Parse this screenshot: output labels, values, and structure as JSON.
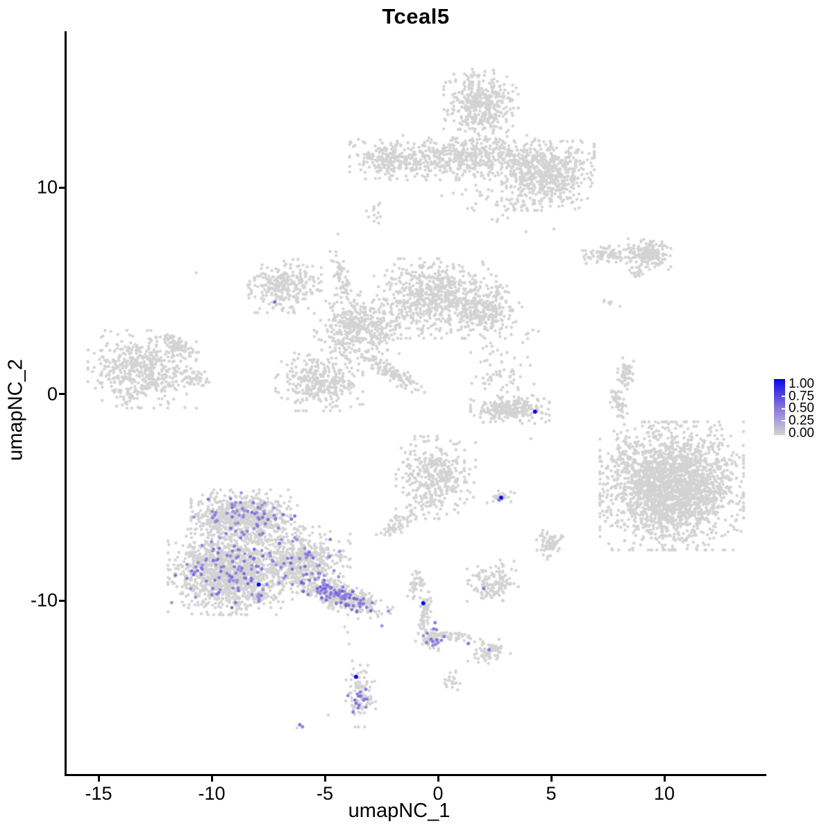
{
  "title": "Tceal5",
  "chart_data": {
    "type": "scatter",
    "title": "Tceal5",
    "xlabel": "umapNC_1",
    "ylabel": "umapNC_2",
    "xlim": [
      -16.45,
      14.47
    ],
    "ylim": [
      -18.39,
      17.58
    ],
    "x_ticks": [
      -15,
      -10,
      -5,
      0,
      5,
      10
    ],
    "x_tick_labels": [
      "-15",
      "-10",
      "-5",
      "0",
      "5",
      "10"
    ],
    "y_ticks": [
      10,
      0,
      -10
    ],
    "y_tick_labels": [
      "10",
      "0",
      "-10"
    ],
    "grid": false,
    "legend_position": "right",
    "legend": {
      "tick_labels": [
        "1.00",
        "0.75",
        "0.50",
        "0.25",
        "0.00"
      ],
      "tick_values": [
        1.0,
        0.75,
        0.5,
        0.25,
        0.0
      ]
    },
    "colors": {
      "low": "#D3D3D3",
      "mid": "#8673DE",
      "high": "#0808E8",
      "axis": "#000000",
      "background": "#FFFFFF"
    },
    "point_radius_px": 2.2,
    "gray_clusters_comment": "each cluster = [cx, cy, sigma_x, sigma_y, rot_deg, n_points] in data coords; zero-expression cells",
    "gray_clusters": [
      [
        1.89,
        14.05,
        0.7,
        0.72,
        0,
        420
      ],
      [
        1.49,
        11.46,
        2.3,
        0.46,
        0,
        650
      ],
      [
        -2.25,
        11.29,
        0.55,
        0.42,
        0,
        130
      ],
      [
        4.8,
        10.59,
        0.85,
        0.72,
        0,
        520
      ],
      [
        3.17,
        9.4,
        1.45,
        0.65,
        0,
        55
      ],
      [
        -2.81,
        8.67,
        0.16,
        0.25,
        0,
        13
      ],
      [
        -6.86,
        5.24,
        0.72,
        0.55,
        0,
        270
      ],
      [
        -4.28,
        5.7,
        0.16,
        0.55,
        12,
        55
      ],
      [
        -3.48,
        3.23,
        0.85,
        0.75,
        0,
        420
      ],
      [
        -0.14,
        4.64,
        1.15,
        0.82,
        0,
        650
      ],
      [
        2.1,
        4.07,
        0.68,
        0.58,
        0,
        260
      ],
      [
        -5.26,
        0.61,
        0.82,
        0.6,
        0,
        330
      ],
      [
        -2.13,
        1.11,
        0.78,
        0.18,
        -35,
        130
      ],
      [
        2.56,
        2.29,
        0.35,
        0.3,
        0,
        7
      ],
      [
        -13.08,
        1.21,
        1.02,
        0.8,
        0,
        520
      ],
      [
        -11.46,
        2.39,
        0.45,
        0.18,
        -35,
        65
      ],
      [
        -10.78,
        0.77,
        0.3,
        0.2,
        0,
        40
      ],
      [
        2.78,
        0.87,
        0.62,
        0.58,
        0,
        55
      ],
      [
        4.0,
        2.89,
        0.35,
        0.25,
        0,
        6
      ],
      [
        3.17,
        -0.71,
        0.74,
        0.3,
        0,
        260
      ],
      [
        7.56,
        6.76,
        0.55,
        0.18,
        0,
        90
      ],
      [
        9.34,
        6.79,
        0.4,
        0.32,
        0,
        160
      ],
      [
        8.73,
        5.88,
        0.28,
        0.11,
        -35,
        20
      ],
      [
        7.68,
        4.54,
        0.25,
        0.22,
        0,
        6
      ],
      [
        8.24,
        0.84,
        0.16,
        0.38,
        -10,
        60
      ],
      [
        7.93,
        -0.4,
        0.14,
        0.32,
        10,
        50
      ],
      [
        10.32,
        -4.44,
        1.35,
        1.32,
        0,
        2300
      ],
      [
        8.6,
        -2.6,
        0.45,
        0.5,
        0,
        14
      ],
      [
        2.78,
        -4.97,
        0.33,
        0.15,
        0,
        26
      ],
      [
        4.92,
        -7.29,
        0.25,
        0.3,
        0,
        65
      ],
      [
        -0.11,
        -4.03,
        0.75,
        0.85,
        0,
        380
      ],
      [
        -1.67,
        -6.22,
        0.5,
        0.16,
        42,
        65
      ],
      [
        3.0,
        -8.3,
        0.35,
        0.2,
        0,
        4
      ],
      [
        -0.97,
        -9.28,
        0.2,
        0.3,
        0,
        40
      ],
      [
        -0.6,
        -10.76,
        0.13,
        0.55,
        -8,
        65
      ],
      [
        -0.29,
        -11.83,
        0.22,
        0.26,
        0,
        55
      ],
      [
        0.57,
        -11.73,
        0.45,
        0.12,
        -5,
        45
      ],
      [
        2.25,
        -12.5,
        0.4,
        0.28,
        0,
        75
      ],
      [
        2.41,
        -9.18,
        0.48,
        0.36,
        0,
        130
      ],
      [
        -8.57,
        -5.92,
        1.0,
        0.55,
        0,
        700
      ],
      [
        -9.19,
        -8.61,
        1.17,
        0.88,
        0,
        1250
      ],
      [
        -6.12,
        -8.0,
        0.95,
        0.68,
        0,
        520
      ],
      [
        -4.43,
        -9.75,
        1.05,
        0.3,
        -22,
        360
      ],
      [
        -3.42,
        -14.42,
        0.28,
        0.72,
        0,
        85
      ],
      [
        0.57,
        -13.85,
        0.17,
        0.3,
        0,
        20
      ]
    ],
    "expression_blobs_comment": "[cx, cy, sigma_x, sigma_y, rot_deg, n, v_min, v_max] scattered expressing cells",
    "expression_blobs": [
      [
        -8.57,
        -5.92,
        0.95,
        0.52,
        0,
        60,
        0.32,
        0.55
      ],
      [
        -9.19,
        -8.61,
        1.1,
        0.84,
        0,
        100,
        0.32,
        0.55
      ],
      [
        -6.12,
        -8.0,
        0.9,
        0.64,
        0,
        50,
        0.32,
        0.55
      ],
      [
        -4.43,
        -9.75,
        1.0,
        0.27,
        -22,
        80,
        0.35,
        0.6
      ],
      [
        -3.47,
        -14.8,
        0.22,
        0.45,
        0,
        9,
        0.35,
        0.55
      ],
      [
        -0.29,
        -11.8,
        0.2,
        0.24,
        0,
        9,
        0.35,
        0.55
      ]
    ],
    "gray_points": [
      [
        -4.13,
        -11.26
      ],
      [
        -4.0,
        -11.53
      ],
      [
        -3.94,
        -12.1
      ],
      [
        -3.79,
        -12.91
      ],
      [
        -4.86,
        -15.53
      ],
      [
        -6.24,
        -16.16
      ],
      [
        -10.69,
        5.88
      ],
      [
        -4.43,
        7.76
      ],
      [
        5.11,
        8.0
      ],
      [
        -3.54,
        11.56
      ],
      [
        -3.3,
        11.19
      ],
      [
        7.93,
        -1.08
      ],
      [
        8.08,
        -1.85
      ],
      [
        8.76,
        -2.42
      ],
      [
        4.09,
        -2.15
      ],
      [
        7.16,
        -4.1
      ],
      [
        2.81,
        -8.2
      ],
      [
        3.24,
        -8.47
      ]
    ],
    "highlight_points_comment": "[x, y, expression_value 0..1]",
    "highlight_points": [
      [
        -7.93,
        -9.21,
        1.0
      ],
      [
        4.28,
        -0.84,
        1.0
      ],
      [
        2.78,
        -5.01,
        1.0
      ],
      [
        -0.66,
        -10.12,
        1.0
      ],
      [
        -3.63,
        -13.68,
        1.0
      ],
      [
        2.68,
        -5.11,
        0.5
      ],
      [
        -7.22,
        4.47,
        0.55
      ],
      [
        2.01,
        -9.41,
        0.5
      ],
      [
        1.33,
        -12.07,
        0.5
      ],
      [
        2.25,
        -12.37,
        0.5
      ],
      [
        0.26,
        -11.73,
        0.45
      ],
      [
        -0.14,
        -11.06,
        0.45
      ],
      [
        -0.2,
        -11.36,
        0.45
      ],
      [
        -0.32,
        -11.87,
        0.5
      ],
      [
        -0.51,
        -12.03,
        0.45
      ],
      [
        -3.2,
        -14.29,
        0.45
      ],
      [
        -3.42,
        -14.62,
        0.5
      ],
      [
        -3.3,
        -14.82,
        0.45
      ],
      [
        -3.63,
        -14.96,
        0.5
      ],
      [
        -3.54,
        -15.19,
        0.45
      ],
      [
        -3.76,
        -15.39,
        0.45
      ],
      [
        -6.12,
        -16.0,
        0.5
      ],
      [
        -6.0,
        -16.1,
        0.4
      ]
    ]
  }
}
